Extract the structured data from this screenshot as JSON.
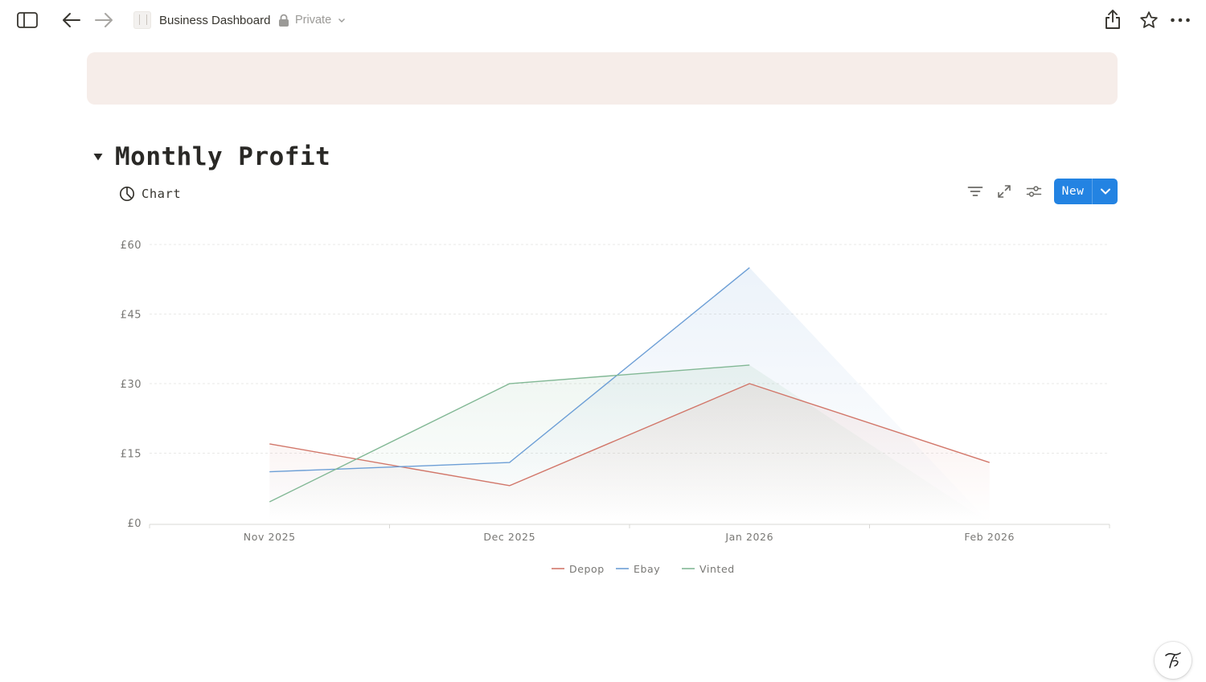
{
  "topbar": {
    "sidebar_toggle_icon": "sidebar-toggle-icon",
    "back_icon": "arrow-left-icon",
    "forward_icon": "arrow-right-icon",
    "page_title": "Business Dashboard",
    "privacy_label": "Private",
    "share_icon": "share-icon",
    "favorite_icon": "star-icon",
    "more_icon": "more-horizontal-icon"
  },
  "cover": {
    "color": "#f6ede9"
  },
  "section": {
    "title": "Monthly Profit",
    "view_label": "Chart",
    "view_icon": "pie-chart-icon",
    "new_label": "New"
  },
  "colors": {
    "accent": "#2383e2",
    "depop": "#d2776a",
    "ebay": "#6d9fd6",
    "vinted": "#82b895"
  },
  "chart_data": {
    "type": "area",
    "categories": [
      "Nov 2025",
      "Dec 2025",
      "Jan 2026",
      "Feb 2026"
    ],
    "series": [
      {
        "name": "Depop",
        "values": [
          17,
          8,
          30,
          13
        ]
      },
      {
        "name": "Ebay",
        "values": [
          11,
          13,
          55,
          null
        ]
      },
      {
        "name": "Vinted",
        "values": [
          4.5,
          30,
          34,
          null
        ]
      }
    ],
    "ylim": [
      0,
      60
    ],
    "yticks": [
      0,
      15,
      30,
      45,
      60
    ],
    "ytick_labels": [
      "£0",
      "£15",
      "£30",
      "£45",
      "£60"
    ],
    "grid": true,
    "legend": "bottom"
  }
}
